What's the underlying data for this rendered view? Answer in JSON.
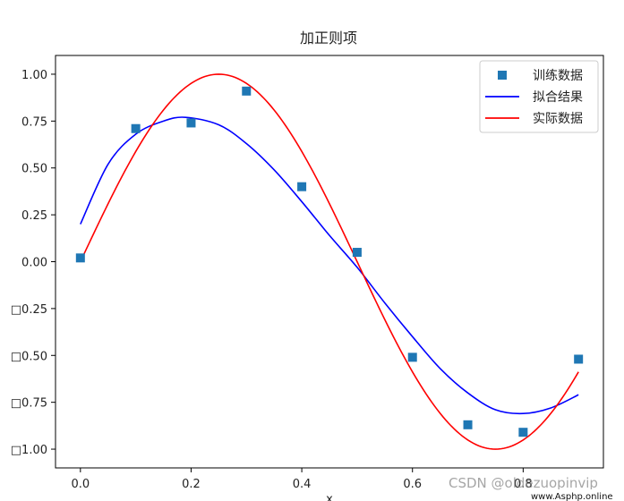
{
  "chart_data": {
    "type": "line",
    "title": "加正则项",
    "xlabel": "x",
    "ylabel": "",
    "xlim": [
      -0.045,
      0.945
    ],
    "ylim": [
      -1.1,
      1.1
    ],
    "xticks": [
      0.0,
      0.2,
      0.4,
      0.6,
      0.8
    ],
    "xtick_labels": [
      "0.0",
      "0.2",
      "0.4",
      "0.6",
      "0.8"
    ],
    "yticks": [
      1.0,
      0.75,
      0.5,
      0.25,
      0.0,
      -0.25,
      -0.5,
      -0.75,
      -1.0
    ],
    "ytick_labels": [
      "1.00",
      "0.75",
      "0.50",
      "0.25",
      "0.00",
      "□0.25",
      "□0.50",
      "□0.75",
      "□1.00"
    ],
    "legend_position": "top-right",
    "grid": false,
    "series": [
      {
        "name": "训练数据",
        "kind": "scatter",
        "marker": "square",
        "color": "#1f77b4",
        "x": [
          0.0,
          0.1,
          0.2,
          0.3,
          0.4,
          0.5,
          0.6,
          0.7,
          0.8,
          0.9
        ],
        "y": [
          0.02,
          0.71,
          0.74,
          0.91,
          0.4,
          0.05,
          -0.51,
          -0.87,
          -0.91,
          -0.52
        ]
      },
      {
        "name": "拟合结果",
        "kind": "line",
        "color": "#0000ff",
        "x": [
          0.0,
          0.05,
          0.1,
          0.15,
          0.19,
          0.25,
          0.3,
          0.35,
          0.4,
          0.45,
          0.5,
          0.55,
          0.6,
          0.65,
          0.7,
          0.75,
          0.8,
          0.85,
          0.9
        ],
        "y": [
          0.2,
          0.52,
          0.68,
          0.75,
          0.77,
          0.73,
          0.63,
          0.49,
          0.32,
          0.14,
          -0.03,
          -0.22,
          -0.4,
          -0.57,
          -0.7,
          -0.79,
          -0.81,
          -0.78,
          -0.71
        ]
      },
      {
        "name": "实际数据",
        "kind": "line",
        "color": "#ff0000",
        "function": "sin(2*pi*x)",
        "x": [
          0.0,
          0.05,
          0.1,
          0.15,
          0.2,
          0.25,
          0.3,
          0.35,
          0.4,
          0.45,
          0.5,
          0.55,
          0.6,
          0.65,
          0.7,
          0.75,
          0.8,
          0.85,
          0.9
        ],
        "y": [
          0.0,
          0.309,
          0.588,
          0.809,
          0.951,
          1.0,
          0.951,
          0.809,
          0.588,
          0.309,
          0.0,
          -0.309,
          -0.588,
          -0.809,
          -0.951,
          -1.0,
          -0.951,
          -0.809,
          -0.588
        ]
      }
    ]
  },
  "watermark": {
    "text": "CSDN @oldezuopinvip",
    "site": "www.Asphp.online"
  }
}
